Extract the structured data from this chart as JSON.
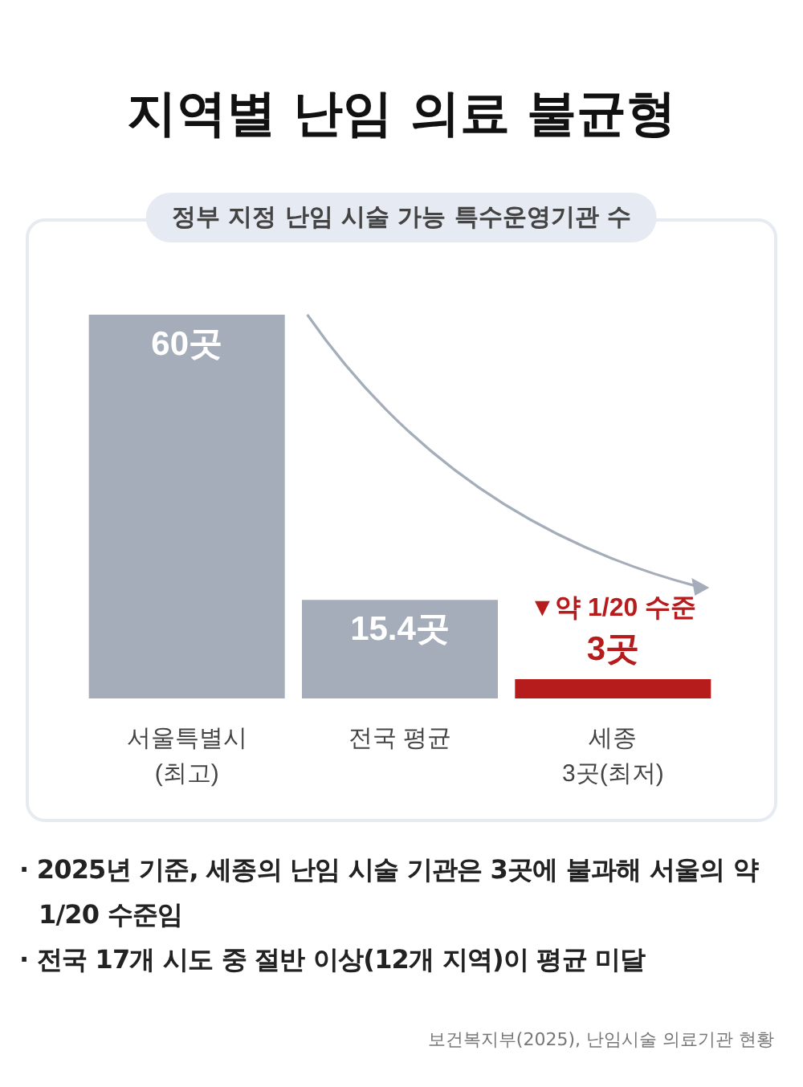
{
  "chart_data": {
    "type": "bar",
    "title": "지역별 난임 의료 불균형",
    "subtitle": "정부 지정 난임 시술 가능 특수운영기관 수",
    "categories": [
      "서울특별시\n(최고)",
      "전국 평균",
      "세종\n3곳(최저)"
    ],
    "values": [
      60,
      15.4,
      3
    ],
    "colors": [
      "#a4adb9",
      "#a4adb9",
      "#b71c1c"
    ],
    "value_labels": [
      "60곳",
      "15.4곳",
      "3곳"
    ],
    "annotations": [
      {
        "text": "▼약 1/20 수준",
        "x": "세종\n3곳(최저)",
        "y": 3
      },
      "· 2025년 기준, 세종의 난임 시술 기관은 3곳에 불과해 서울의 약 1/20 수준임",
      "· 전국 17개 시도 중 절반 이상(12개 지역)이 평균 미달",
      "보건복지부(2025), 난임시술 의료기관 현황"
    ]
  }
}
